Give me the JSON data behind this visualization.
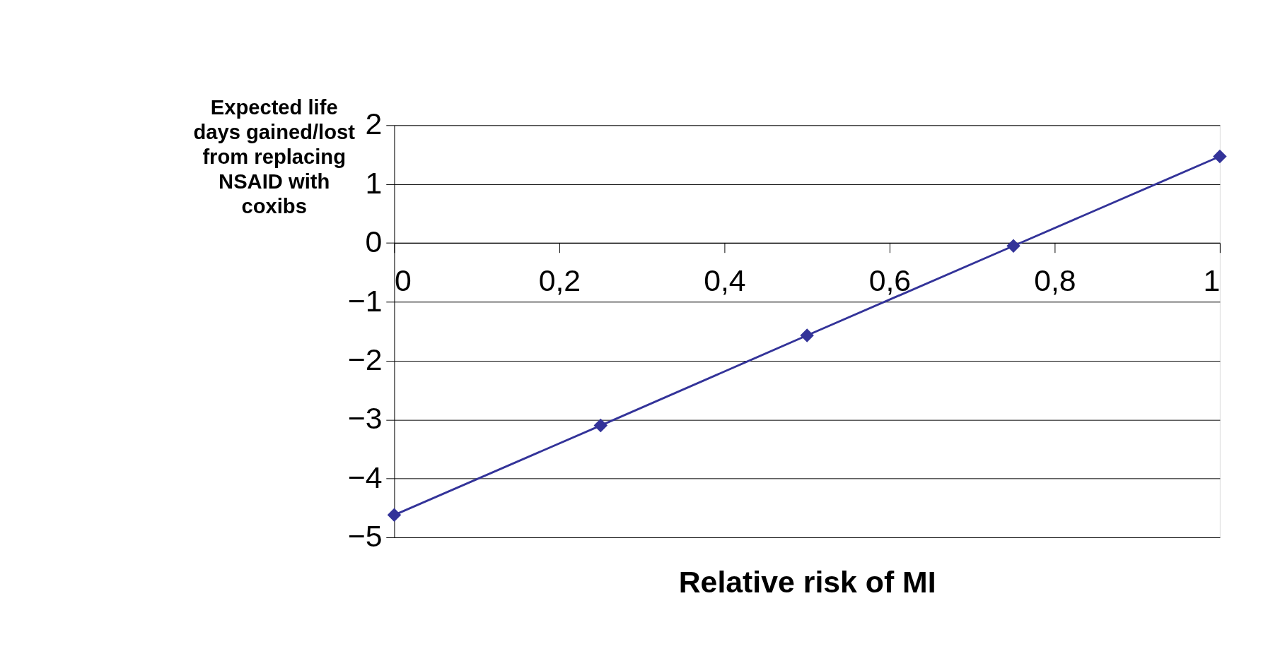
{
  "chart_data": {
    "type": "line",
    "xlabel": "Relative risk of MI",
    "ylabel": "Expected life days gained/lost from replacing NSAID with coxibs",
    "x": [
      0,
      0.25,
      0.5,
      0.75,
      1
    ],
    "series": [
      {
        "color": "#333399",
        "values": [
          -4.62,
          -3.1,
          -1.57,
          -0.05,
          1.47
        ]
      }
    ],
    "xlim": [
      0,
      1
    ],
    "xticks": [
      {
        "value": 0,
        "label": "0"
      },
      {
        "value": 0.2,
        "label": "0,2"
      },
      {
        "value": 0.4,
        "label": "0,4"
      },
      {
        "value": 0.6,
        "label": "0,6"
      },
      {
        "value": 0.8,
        "label": "0,8"
      },
      {
        "value": 1,
        "label": "1"
      }
    ],
    "ylim": [
      -5,
      2
    ],
    "yticks": [
      -5,
      -4,
      -3,
      -2,
      -1,
      0,
      1,
      2
    ],
    "grid": "y",
    "legend": false,
    "marker": "diamond",
    "line_style": "solid"
  }
}
